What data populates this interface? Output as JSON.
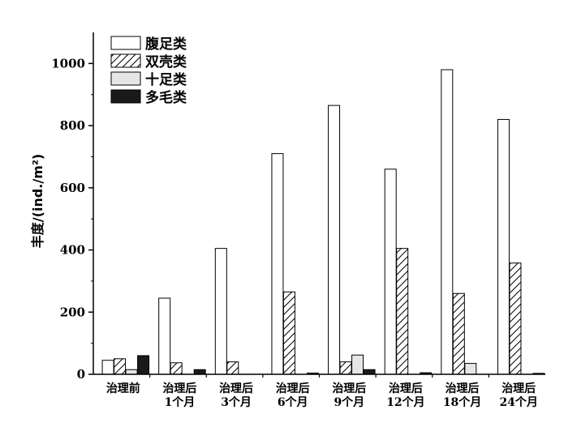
{
  "chart_data": {
    "type": "bar",
    "title": "",
    "xlabel": "",
    "ylabel": "丰度/(ind./m²)",
    "ylim": [
      0,
      1100
    ],
    "yticks": [
      0,
      200,
      400,
      600,
      800,
      1000
    ],
    "grid": false,
    "legend_position": "top-left",
    "categories": [
      [
        "治理前"
      ],
      [
        "治理后",
        "1个月"
      ],
      [
        "治理后",
        "3个月"
      ],
      [
        "治理后",
        "6个月"
      ],
      [
        "治理后",
        "9个月"
      ],
      [
        "治理后",
        "12个月"
      ],
      [
        "治理后",
        "18个月"
      ],
      [
        "治理后",
        "24个月"
      ]
    ],
    "series": [
      {
        "name": "腹足类",
        "fill": "white",
        "values": [
          45,
          245,
          405,
          710,
          865,
          660,
          980,
          820
        ]
      },
      {
        "name": "双壳类",
        "fill": "hatch",
        "values": [
          50,
          37,
          40,
          265,
          40,
          405,
          260,
          358
        ]
      },
      {
        "name": "十足类",
        "fill": "#e6e6e6",
        "values": [
          15,
          0,
          0,
          0,
          62,
          0,
          35,
          0
        ]
      },
      {
        "name": "多毛类",
        "fill": "#1a1a1a",
        "values": [
          60,
          15,
          0,
          4,
          15,
          5,
          0,
          3
        ]
      }
    ]
  }
}
